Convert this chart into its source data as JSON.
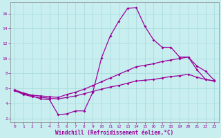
{
  "title": "",
  "xlabel": "Windchill (Refroidissement éolien,°C)",
  "ylabel": "",
  "bg_color": "#c8eef0",
  "grid_color": "#aadddd",
  "line_color": "#990099",
  "spine_color": "#888888",
  "xlim": [
    -0.5,
    23.5
  ],
  "ylim": [
    1.5,
    17.5
  ],
  "xticks": [
    0,
    1,
    2,
    3,
    4,
    5,
    6,
    7,
    8,
    9,
    10,
    11,
    12,
    13,
    14,
    15,
    16,
    17,
    18,
    19,
    20,
    21,
    22,
    23
  ],
  "yticks": [
    2,
    4,
    6,
    8,
    10,
    12,
    14,
    16
  ],
  "line1_x": [
    0,
    1,
    2,
    3,
    4,
    5,
    6,
    7,
    8,
    9,
    10,
    11,
    12,
    13,
    14,
    15,
    16,
    17,
    18,
    19,
    20,
    21,
    22,
    23
  ],
  "line1_y": [
    5.7,
    5.3,
    5.0,
    4.6,
    4.5,
    2.5,
    2.6,
    3.0,
    3.0,
    5.5,
    10.1,
    13.0,
    15.0,
    16.7,
    16.8,
    14.3,
    12.5,
    11.5,
    11.5,
    10.2,
    10.2,
    8.5,
    7.2,
    7.0
  ],
  "line2_x": [
    0,
    1,
    2,
    3,
    4,
    5,
    6,
    7,
    8,
    9,
    10,
    11,
    12,
    13,
    14,
    15,
    16,
    17,
    18,
    19,
    20,
    21,
    22,
    23
  ],
  "line2_y": [
    5.8,
    5.4,
    5.1,
    5.0,
    4.9,
    4.8,
    5.2,
    5.5,
    5.9,
    6.4,
    6.9,
    7.4,
    7.9,
    8.4,
    8.9,
    9.1,
    9.3,
    9.6,
    9.8,
    10.0,
    10.2,
    9.0,
    8.3,
    7.1
  ],
  "line3_x": [
    0,
    1,
    2,
    3,
    4,
    5,
    6,
    7,
    8,
    9,
    10,
    11,
    12,
    13,
    14,
    15,
    16,
    17,
    18,
    19,
    20,
    21,
    22,
    23
  ],
  "line3_y": [
    5.7,
    5.2,
    4.9,
    4.8,
    4.7,
    4.6,
    4.8,
    5.0,
    5.3,
    5.6,
    5.9,
    6.2,
    6.4,
    6.7,
    7.0,
    7.1,
    7.2,
    7.4,
    7.6,
    7.7,
    7.9,
    7.5,
    7.2,
    7.0
  ]
}
